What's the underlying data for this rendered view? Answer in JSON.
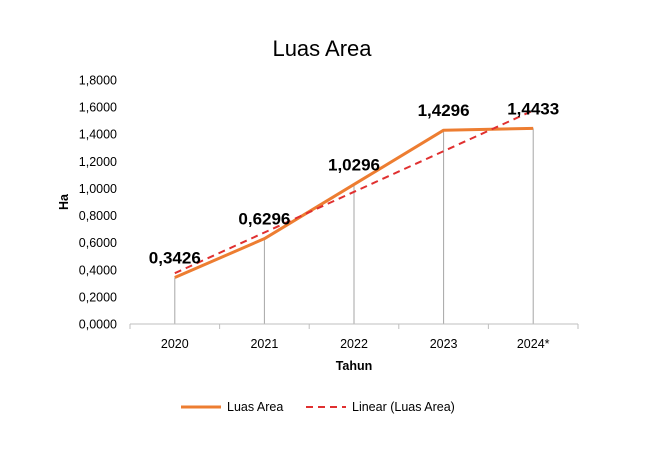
{
  "chart_data": {
    "type": "line",
    "title": "Luas Area",
    "xlabel": "Tahun",
    "ylabel": "Ha",
    "categories": [
      "2020",
      "2021",
      "2022",
      "2023",
      "2024*"
    ],
    "ylim": [
      0,
      1.8
    ],
    "ystep": 0.2,
    "ytick_labels": [
      "0,0000",
      "0,2000",
      "0,4000",
      "0,6000",
      "0,8000",
      "1,0000",
      "1,2000",
      "1,4000",
      "1,6000",
      "1,8000"
    ],
    "series": [
      {
        "name": "Luas Area",
        "values": [
          0.3426,
          0.6296,
          1.0296,
          1.4296,
          1.4433
        ],
        "data_labels": [
          "0,3426",
          "0,6296",
          "1,0296",
          "1,4296",
          "1,4433"
        ],
        "color": "#ED7D31"
      }
    ],
    "trendline": {
      "name": "Linear (Luas Area)",
      "type": "linear",
      "color": "#E03030",
      "dashed": true
    },
    "drop_lines": true,
    "grid": false,
    "legend_position": "bottom"
  }
}
